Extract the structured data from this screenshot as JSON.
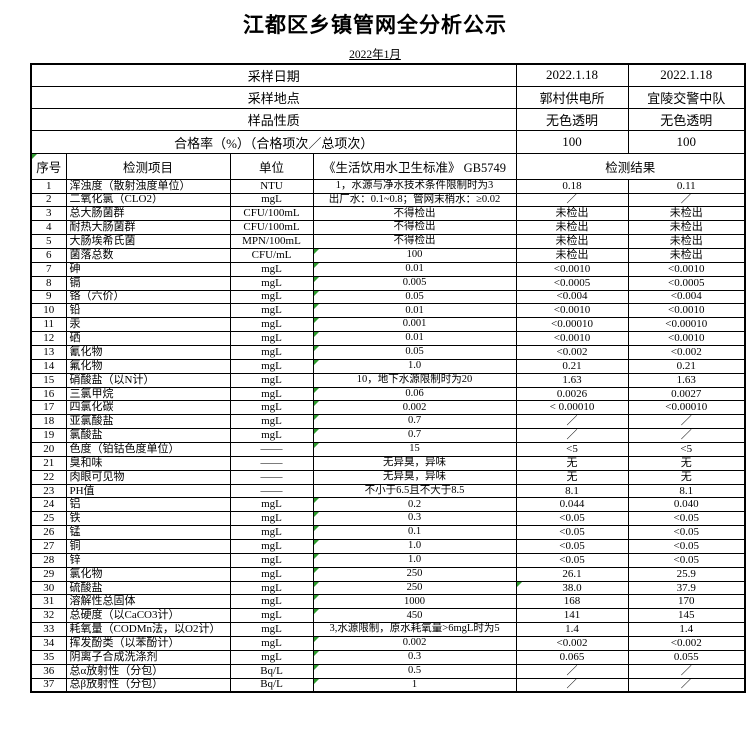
{
  "title": "江都区乡镇管网全分析公示",
  "subtitle": "2022年1月",
  "colors": {
    "flag_green": "#2e9b2e",
    "border": "#000000",
    "text": "#000000",
    "page_bg": "#ffffff"
  },
  "info_rows": [
    {
      "label": "采样日期",
      "v1": "2022.1.18",
      "v2": "2022.1.18"
    },
    {
      "label": "采样地点",
      "v1": "郭村供电所",
      "v2": "宜陵交警中队"
    },
    {
      "label": "样品性质",
      "v1": "无色透明",
      "v2": "无色透明"
    },
    {
      "label": "合格率（%）（合格项次／总项次）",
      "v1": "100",
      "v2": "100"
    }
  ],
  "columns": {
    "index": "序号",
    "item": "检测项目",
    "unit": "单位",
    "standard": "《生活饮用水卫生标准》 GB5749",
    "result": "检测结果"
  },
  "rows": [
    {
      "no": "1",
      "item": "浑浊度（散射浊度单位）",
      "unit": "NTU",
      "std": "1，水源与净水技术条件限制时为3",
      "r1": "0.18",
      "r2": "0.11",
      "f": false,
      "rf": false
    },
    {
      "no": "2",
      "item": "二氧化氯（CLO2）",
      "unit": "mgL",
      "std": "出厂水：0.1~0.8；管网末梢水：≥0.02",
      "r1": "／",
      "r2": "／",
      "f": false,
      "rf": false
    },
    {
      "no": "3",
      "item": "总大肠菌群",
      "unit": "CFU/100mL",
      "std": "不得检出",
      "r1": "未检出",
      "r2": "未检出",
      "f": false,
      "rf": false
    },
    {
      "no": "4",
      "item": "耐热大肠菌群",
      "unit": "CFU/100mL",
      "std": "不得检出",
      "r1": "未检出",
      "r2": "未检出",
      "f": false,
      "rf": false
    },
    {
      "no": "5",
      "item": "大肠埃希氏菌",
      "unit": "MPN/100mL",
      "std": "不得检出",
      "r1": "未检出",
      "r2": "未检出",
      "f": false,
      "rf": false
    },
    {
      "no": "6",
      "item": "菌落总数",
      "unit": "CFU/mL",
      "std": "100",
      "r1": "未检出",
      "r2": "未检出",
      "f": true,
      "rf": false
    },
    {
      "no": "7",
      "item": "砷",
      "unit": "mgL",
      "std": "0.01",
      "r1": "<0.0010",
      "r2": "<0.0010",
      "f": true,
      "rf": false
    },
    {
      "no": "8",
      "item": "镉",
      "unit": "mgL",
      "std": "0.005",
      "r1": "<0.0005",
      "r2": "<0.0005",
      "f": true,
      "rf": false
    },
    {
      "no": "9",
      "item": "铬（六价）",
      "unit": "mgL",
      "std": "0.05",
      "r1": "<0.004",
      "r2": "<0.004",
      "f": true,
      "rf": false
    },
    {
      "no": "10",
      "item": "铅",
      "unit": "mgL",
      "std": "0.01",
      "r1": "<0.0010",
      "r2": "<0.0010",
      "f": true,
      "rf": false
    },
    {
      "no": "11",
      "item": "汞",
      "unit": "mgL",
      "std": "0.001",
      "r1": "<0.00010",
      "r2": "<0.00010",
      "f": true,
      "rf": false
    },
    {
      "no": "12",
      "item": "硒",
      "unit": "mgL",
      "std": "0.01",
      "r1": "<0.0010",
      "r2": "<0.0010",
      "f": true,
      "rf": false
    },
    {
      "no": "13",
      "item": "氰化物",
      "unit": "mgL",
      "std": "0.05",
      "r1": "<0.002",
      "r2": "<0.002",
      "f": true,
      "rf": false
    },
    {
      "no": "14",
      "item": "氟化物",
      "unit": "mgL",
      "std": "1.0",
      "r1": "0.21",
      "r2": "0.21",
      "f": true,
      "rf": false
    },
    {
      "no": "15",
      "item": "硝酸盐（以N计）",
      "unit": "mgL",
      "std": "10，地下水源限制时为20",
      "r1": "1.63",
      "r2": "1.63",
      "f": false,
      "rf": false
    },
    {
      "no": "16",
      "item": "三氯甲烷",
      "unit": "mgL",
      "std": "0.06",
      "r1": "0.0026",
      "r2": "0.0027",
      "f": true,
      "rf": false
    },
    {
      "no": "17",
      "item": "四氯化碳",
      "unit": "mgL",
      "std": "0.002",
      "r1": "< 0.00010",
      "r2": "<0.00010",
      "f": true,
      "rf": false
    },
    {
      "no": "18",
      "item": "亚氯酸盐",
      "unit": "mgL",
      "std": "0.7",
      "r1": "／",
      "r2": "／",
      "f": true,
      "rf": false
    },
    {
      "no": "19",
      "item": "氯酸盐",
      "unit": "mgL",
      "std": "0.7",
      "r1": "／",
      "r2": "／",
      "f": true,
      "rf": false
    },
    {
      "no": "20",
      "item": "色度（铂钴色度单位）",
      "unit": "——",
      "std": "15",
      "r1": "<5",
      "r2": "<5",
      "f": true,
      "rf": false
    },
    {
      "no": "21",
      "item": "臭和味",
      "unit": "——",
      "std": "无异臭，异味",
      "r1": "无",
      "r2": "无",
      "f": false,
      "rf": false
    },
    {
      "no": "22",
      "item": "肉眼可见物",
      "unit": "——",
      "std": "无异臭，异味",
      "r1": "无",
      "r2": "无",
      "f": false,
      "rf": false
    },
    {
      "no": "23",
      "item": "PH值",
      "unit": "——",
      "std": "不小于6.5且不大于8.5",
      "r1": "8.1",
      "r2": "8.1",
      "f": false,
      "rf": false
    },
    {
      "no": "24",
      "item": "铝",
      "unit": "mgL",
      "std": "0.2",
      "r1": "0.044",
      "r2": "0.040",
      "f": true,
      "rf": false
    },
    {
      "no": "25",
      "item": "铁",
      "unit": "mgL",
      "std": "0.3",
      "r1": "<0.05",
      "r2": "<0.05",
      "f": true,
      "rf": false
    },
    {
      "no": "26",
      "item": "锰",
      "unit": "mgL",
      "std": "0.1",
      "r1": "<0.05",
      "r2": "<0.05",
      "f": true,
      "rf": false
    },
    {
      "no": "27",
      "item": "铜",
      "unit": "mgL",
      "std": "1.0",
      "r1": "<0.05",
      "r2": "<0.05",
      "f": true,
      "rf": false
    },
    {
      "no": "28",
      "item": "锌",
      "unit": "mgL",
      "std": "1.0",
      "r1": "<0.05",
      "r2": "<0.05",
      "f": true,
      "rf": false
    },
    {
      "no": "29",
      "item": "氯化物",
      "unit": "mgL",
      "std": "250",
      "r1": "26.1",
      "r2": "25.9",
      "f": true,
      "rf": false
    },
    {
      "no": "30",
      "item": "硫酸盐",
      "unit": "mgL",
      "std": "250",
      "r1": "38.0",
      "r2": "37.9",
      "f": true,
      "rf": true
    },
    {
      "no": "31",
      "item": "溶解性总固体",
      "unit": "mgL",
      "std": "1000",
      "r1": "168",
      "r2": "170",
      "f": true,
      "rf": false
    },
    {
      "no": "32",
      "item": "总硬度（以CaCO3计）",
      "unit": "mgL",
      "std": "450",
      "r1": "141",
      "r2": "145",
      "f": true,
      "rf": false
    },
    {
      "no": "33",
      "item": "耗氧量（CODMn法，以O2计）",
      "unit": "mgL",
      "std": "3,水源限制，原水耗氧量>6mgL时为5",
      "r1": "1.4",
      "r2": "1.4",
      "f": false,
      "rf": false
    },
    {
      "no": "34",
      "item": "挥发酚类（以苯酚计）",
      "unit": "mgL",
      "std": "0.002",
      "r1": "<0.002",
      "r2": "<0.002",
      "f": true,
      "rf": false
    },
    {
      "no": "35",
      "item": "阴离子合成洗涤剂",
      "unit": "mgL",
      "std": "0.3",
      "r1": "0.065",
      "r2": "0.055",
      "f": true,
      "rf": false
    },
    {
      "no": "36",
      "item": "总α放射性（分包）",
      "unit": "Bq/L",
      "std": "0.5",
      "r1": "／",
      "r2": "／",
      "f": true,
      "rf": false
    },
    {
      "no": "37",
      "item": "总β放射性（分包）",
      "unit": "Bq/L",
      "std": "1",
      "r1": "／",
      "r2": "／",
      "f": true,
      "rf": false
    }
  ]
}
